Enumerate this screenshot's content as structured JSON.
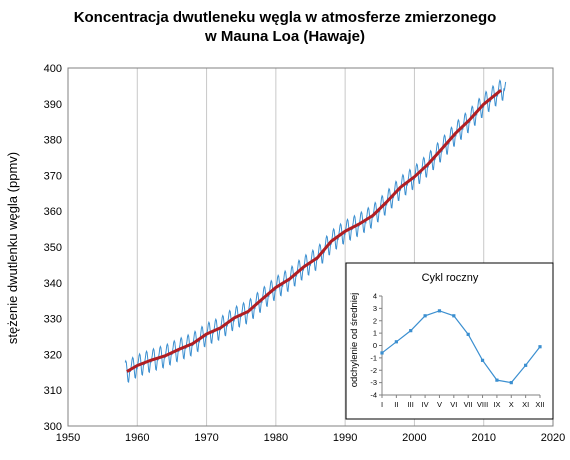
{
  "chart_data": [
    {
      "type": "line",
      "title_line1": "Koncentracja dwutleneku węgla w atmosferze zmierzonego",
      "title_line2": "w Mauna Loa (Hawaje)",
      "xlabel": "",
      "ylabel": "stężenie dwutlenku węgla (ppmv)",
      "xlim": [
        1950,
        2020
      ],
      "ylim": [
        300,
        400
      ],
      "xticks": [
        1950,
        1960,
        1970,
        1980,
        1990,
        2000,
        2010,
        2020
      ],
      "yticks": [
        300,
        310,
        320,
        330,
        340,
        350,
        360,
        370,
        380,
        390,
        400
      ],
      "grid": "vertical",
      "colors": {
        "monthly": "#3b8fd0",
        "annual": "#b01e23"
      },
      "annual": {
        "x": [
          1958.5,
          1960,
          1962,
          1964,
          1966,
          1968,
          1970,
          1972,
          1974,
          1976,
          1978,
          1980,
          1982,
          1984,
          1986,
          1988,
          1990,
          1992,
          1994,
          1996,
          1998,
          2000,
          2002,
          2004,
          2006,
          2008,
          2010,
          2012.5
        ],
        "y": [
          315.2,
          316.9,
          318.4,
          319.6,
          321.4,
          323.0,
          325.7,
          327.4,
          330.2,
          332.0,
          335.4,
          338.7,
          341.1,
          344.4,
          347.0,
          351.6,
          354.4,
          356.4,
          358.8,
          362.6,
          366.7,
          369.6,
          373.2,
          377.5,
          381.9,
          385.6,
          389.9,
          393.8
        ]
      },
      "seasonal_amplitude": 3.2
    },
    {
      "type": "line",
      "title": "Cykl roczny",
      "ylabel": "odchylenie od średniej",
      "categories": [
        "I",
        "II",
        "III",
        "IV",
        "V",
        "VI",
        "VII",
        "VIII",
        "IX",
        "X",
        "XI",
        "XII"
      ],
      "values": [
        -0.6,
        0.3,
        1.2,
        2.4,
        2.8,
        2.4,
        0.9,
        -1.2,
        -2.8,
        -3.0,
        -1.6,
        -0.1
      ],
      "ylim": [
        -4,
        4
      ],
      "yticks": [
        -4,
        -3,
        -2,
        -1,
        0,
        1,
        2,
        3,
        4
      ],
      "color": "#3b8fd0"
    }
  ]
}
